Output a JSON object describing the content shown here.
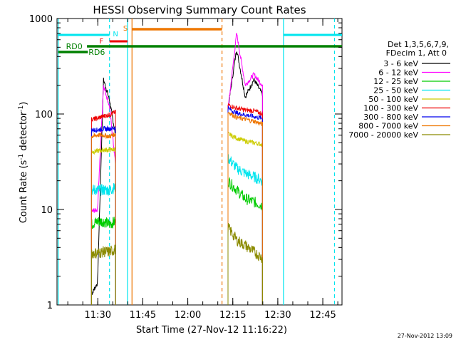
{
  "chart_data": {
    "type": "line",
    "title": "HESSI Observing Summary Count Rates",
    "xlabel": "Start Time (27-Nov-12 11:16:22)",
    "ylabel": "Count Rate (s",
    "ylabel_sup1": "-1",
    "ylabel_mid": " detector",
    "ylabel_sup2": "-1",
    "ylabel_end": ")",
    "yscale": "log",
    "ylim": [
      1,
      1000
    ],
    "xlim_minutes": [
      0,
      95
    ],
    "x_ticks": [
      {
        "m": 13.6,
        "label": "11:30"
      },
      {
        "m": 28.6,
        "label": "11:45"
      },
      {
        "m": 43.6,
        "label": "12:00"
      },
      {
        "m": 58.6,
        "label": "12:15"
      },
      {
        "m": 73.6,
        "label": "12:30"
      },
      {
        "m": 88.6,
        "label": "12:45"
      }
    ],
    "y_ticks": [
      {
        "v": 1,
        "label": "1"
      },
      {
        "v": 10,
        "label": "10"
      },
      {
        "v": 100,
        "label": "100"
      },
      {
        "v": 1000,
        "label": "1000"
      }
    ],
    "legend_header": [
      "Det 1,3,5,6,7,9,",
      "FDecim 1, Att 0"
    ],
    "series": [
      {
        "name": "3 - 6 keV",
        "color": "#000000",
        "seg1": [
          1.3,
          1.7,
          230,
          140,
          60
        ],
        "seg2": [
          115,
          480,
          150,
          230,
          160
        ]
      },
      {
        "name": "6 - 12 keV",
        "color": "#ff00ff",
        "seg1": [
          9.5,
          10,
          200,
          120,
          30
        ],
        "seg2": [
          110,
          700,
          200,
          260,
          200
        ]
      },
      {
        "name": "12 - 25 keV",
        "color": "#00cc00",
        "seg1": [
          7,
          7.5,
          7.5,
          7,
          7.5
        ],
        "seg2": [
          20,
          16,
          13,
          12,
          11
        ]
      },
      {
        "name": "25 - 50 keV",
        "color": "#00e5ee",
        "seg1": [
          16,
          16,
          16,
          16,
          17
        ],
        "seg2": [
          35,
          27,
          24,
          22,
          20
        ]
      },
      {
        "name": "50 - 100 keV",
        "color": "#cccc00",
        "seg1": [
          40,
          41,
          42,
          42,
          43
        ],
        "seg2": [
          62,
          56,
          52,
          50,
          48
        ]
      },
      {
        "name": "100 - 300 keV",
        "color": "#ee0000",
        "seg1": [
          88,
          90,
          95,
          98,
          105
        ],
        "seg2": [
          125,
          115,
          110,
          108,
          100
        ]
      },
      {
        "name": "300 - 800 keV",
        "color": "#0000ee",
        "seg1": [
          68,
          68,
          70,
          70,
          72
        ],
        "seg2": [
          115,
          102,
          98,
          94,
          90
        ]
      },
      {
        "name": "800 - 7000 keV",
        "color": "#ee7600",
        "seg1": [
          58,
          60,
          60,
          58,
          62
        ],
        "seg2": [
          105,
          92,
          88,
          84,
          78
        ]
      },
      {
        "name": "7000 - 20000 keV",
        "color": "#8b8b00",
        "seg1": [
          3.5,
          3.5,
          3.6,
          3.6,
          3.8
        ],
        "seg2": [
          6.5,
          4.8,
          4.2,
          3.6,
          3.1
        ]
      }
    ],
    "seg1_range_minutes": [
      11.5,
      19.5
    ],
    "seg2_range_minutes": [
      57,
      68.5
    ],
    "annotations": [
      {
        "label": "N",
        "color": "#00e5ee"
      },
      {
        "label": "S",
        "color": "#ee7600"
      },
      {
        "label": "F",
        "color": "#ee0000"
      },
      {
        "label": "RD0",
        "color": "#008000"
      },
      {
        "label": "RD6",
        "color": "#008000"
      }
    ],
    "footer_timestamp": "27-Nov-2012 13:09"
  }
}
